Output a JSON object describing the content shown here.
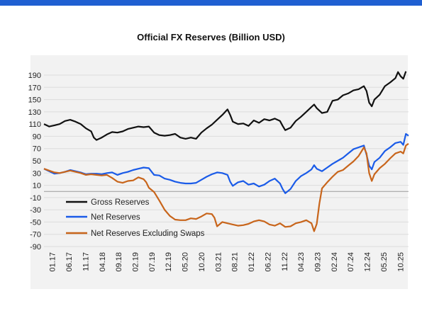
{
  "chart_data": {
    "type": "line",
    "title": "Official  FX Reserves (Billion USD)",
    "xlabel": "",
    "ylabel": "",
    "ylim": [
      -90,
      190
    ],
    "yticks": [
      190,
      170,
      150,
      130,
      110,
      90,
      70,
      50,
      30,
      10,
      -10,
      -30,
      -50,
      -70,
      -90
    ],
    "xticks": [
      "01.17",
      "06.17",
      "11.17",
      "04.18",
      "09.18",
      "02.19",
      "07.19",
      "12.19",
      "05.20",
      "10.20",
      "03.21",
      "08.21",
      "01.22",
      "06.22",
      "11.22",
      "04.23",
      "09.23",
      "02.24",
      "07.24",
      "12.24",
      "05.25",
      "10.25"
    ],
    "grid": true,
    "legend_position": "bottom-left",
    "series": [
      {
        "name": "Gross Reserves",
        "color": "#111111",
        "points": [
          [
            0,
            110
          ],
          [
            2,
            106
          ],
          [
            4,
            108
          ],
          [
            6,
            110
          ],
          [
            8,
            115
          ],
          [
            10,
            117
          ],
          [
            12,
            114
          ],
          [
            14,
            110
          ],
          [
            16,
            103
          ],
          [
            18,
            98
          ],
          [
            19,
            88
          ],
          [
            20,
            84
          ],
          [
            22,
            88
          ],
          [
            24,
            93
          ],
          [
            26,
            97
          ],
          [
            28,
            96
          ],
          [
            30,
            98
          ],
          [
            32,
            102
          ],
          [
            34,
            104
          ],
          [
            36,
            106
          ],
          [
            38,
            105
          ],
          [
            40,
            106
          ],
          [
            42,
            96
          ],
          [
            44,
            92
          ],
          [
            46,
            91
          ],
          [
            48,
            92
          ],
          [
            50,
            94
          ],
          [
            52,
            88
          ],
          [
            54,
            86
          ],
          [
            56,
            88
          ],
          [
            58,
            86
          ],
          [
            60,
            96
          ],
          [
            62,
            103
          ],
          [
            64,
            109
          ],
          [
            66,
            117
          ],
          [
            68,
            125
          ],
          [
            70,
            134
          ],
          [
            71,
            125
          ],
          [
            72,
            114
          ],
          [
            74,
            110
          ],
          [
            76,
            111
          ],
          [
            78,
            107
          ],
          [
            80,
            116
          ],
          [
            82,
            112
          ],
          [
            84,
            118
          ],
          [
            86,
            116
          ],
          [
            88,
            119
          ],
          [
            90,
            115
          ],
          [
            91,
            107
          ],
          [
            92,
            100
          ],
          [
            94,
            104
          ],
          [
            96,
            115
          ],
          [
            98,
            122
          ],
          [
            100,
            130
          ],
          [
            102,
            138
          ],
          [
            103,
            142
          ],
          [
            104,
            136
          ],
          [
            106,
            128
          ],
          [
            108,
            130
          ],
          [
            110,
            148
          ],
          [
            112,
            150
          ],
          [
            114,
            157
          ],
          [
            116,
            160
          ],
          [
            118,
            165
          ],
          [
            120,
            167
          ],
          [
            122,
            172
          ],
          [
            123,
            164
          ],
          [
            124,
            145
          ],
          [
            125,
            139
          ],
          [
            126,
            150
          ],
          [
            128,
            158
          ],
          [
            130,
            172
          ],
          [
            132,
            178
          ],
          [
            134,
            185
          ],
          [
            135,
            195
          ],
          [
            136,
            188
          ],
          [
            137,
            184
          ],
          [
            138,
            196
          ]
        ]
      },
      {
        "name": "Net Reserves",
        "color": "#1a5be8",
        "points": [
          [
            0,
            37
          ],
          [
            2,
            33
          ],
          [
            4,
            29
          ],
          [
            6,
            30
          ],
          [
            8,
            32
          ],
          [
            10,
            35
          ],
          [
            12,
            33
          ],
          [
            14,
            31
          ],
          [
            16,
            28
          ],
          [
            18,
            29
          ],
          [
            20,
            29
          ],
          [
            22,
            28
          ],
          [
            24,
            30
          ],
          [
            26,
            31
          ],
          [
            28,
            27
          ],
          [
            30,
            30
          ],
          [
            32,
            32
          ],
          [
            34,
            35
          ],
          [
            36,
            37
          ],
          [
            38,
            39
          ],
          [
            40,
            38
          ],
          [
            42,
            27
          ],
          [
            44,
            26
          ],
          [
            46,
            21
          ],
          [
            48,
            19
          ],
          [
            50,
            16
          ],
          [
            52,
            14
          ],
          [
            54,
            13
          ],
          [
            56,
            13
          ],
          [
            58,
            14
          ],
          [
            60,
            19
          ],
          [
            62,
            24
          ],
          [
            64,
            28
          ],
          [
            66,
            31
          ],
          [
            68,
            30
          ],
          [
            70,
            27
          ],
          [
            71,
            16
          ],
          [
            72,
            9
          ],
          [
            74,
            15
          ],
          [
            76,
            17
          ],
          [
            78,
            11
          ],
          [
            80,
            13
          ],
          [
            82,
            8
          ],
          [
            84,
            11
          ],
          [
            86,
            17
          ],
          [
            88,
            21
          ],
          [
            90,
            13
          ],
          [
            91,
            4
          ],
          [
            92,
            -3
          ],
          [
            94,
            4
          ],
          [
            96,
            17
          ],
          [
            98,
            25
          ],
          [
            100,
            30
          ],
          [
            102,
            36
          ],
          [
            103,
            43
          ],
          [
            104,
            37
          ],
          [
            106,
            33
          ],
          [
            108,
            39
          ],
          [
            110,
            45
          ],
          [
            112,
            50
          ],
          [
            114,
            55
          ],
          [
            116,
            62
          ],
          [
            118,
            69
          ],
          [
            120,
            72
          ],
          [
            122,
            75
          ],
          [
            123,
            60
          ],
          [
            124,
            42
          ],
          [
            125,
            36
          ],
          [
            126,
            48
          ],
          [
            128,
            55
          ],
          [
            130,
            66
          ],
          [
            132,
            72
          ],
          [
            134,
            79
          ],
          [
            136,
            81
          ],
          [
            137,
            76
          ],
          [
            138,
            94
          ],
          [
            139,
            91
          ]
        ]
      },
      {
        "name": "Net Reserves Excluding Swaps",
        "color": "#c8651b",
        "points": [
          [
            0,
            37
          ],
          [
            2,
            34
          ],
          [
            4,
            31
          ],
          [
            6,
            30
          ],
          [
            8,
            32
          ],
          [
            10,
            34
          ],
          [
            12,
            32
          ],
          [
            14,
            30
          ],
          [
            16,
            27
          ],
          [
            18,
            28
          ],
          [
            20,
            27
          ],
          [
            22,
            26
          ],
          [
            24,
            27
          ],
          [
            26,
            22
          ],
          [
            28,
            16
          ],
          [
            30,
            14
          ],
          [
            32,
            17
          ],
          [
            34,
            18
          ],
          [
            36,
            23
          ],
          [
            38,
            20
          ],
          [
            39,
            15
          ],
          [
            40,
            6
          ],
          [
            42,
            -1
          ],
          [
            44,
            -15
          ],
          [
            46,
            -30
          ],
          [
            48,
            -40
          ],
          [
            50,
            -46
          ],
          [
            52,
            -47
          ],
          [
            54,
            -47
          ],
          [
            56,
            -44
          ],
          [
            58,
            -45
          ],
          [
            60,
            -41
          ],
          [
            62,
            -36
          ],
          [
            64,
            -37
          ],
          [
            65,
            -43
          ],
          [
            66,
            -57
          ],
          [
            68,
            -50
          ],
          [
            70,
            -52
          ],
          [
            72,
            -54
          ],
          [
            74,
            -56
          ],
          [
            76,
            -55
          ],
          [
            78,
            -53
          ],
          [
            80,
            -49
          ],
          [
            82,
            -47
          ],
          [
            84,
            -49
          ],
          [
            86,
            -54
          ],
          [
            88,
            -56
          ],
          [
            90,
            -52
          ],
          [
            92,
            -58
          ],
          [
            94,
            -57
          ],
          [
            96,
            -52
          ],
          [
            98,
            -50
          ],
          [
            100,
            -47
          ],
          [
            102,
            -52
          ],
          [
            103,
            -65
          ],
          [
            104,
            -53
          ],
          [
            105,
            -20
          ],
          [
            106,
            5
          ],
          [
            108,
            15
          ],
          [
            110,
            24
          ],
          [
            112,
            32
          ],
          [
            114,
            35
          ],
          [
            116,
            42
          ],
          [
            118,
            49
          ],
          [
            120,
            58
          ],
          [
            122,
            72
          ],
          [
            123,
            62
          ],
          [
            124,
            30
          ],
          [
            125,
            17
          ],
          [
            126,
            28
          ],
          [
            128,
            38
          ],
          [
            130,
            45
          ],
          [
            132,
            54
          ],
          [
            134,
            62
          ],
          [
            136,
            65
          ],
          [
            137,
            62
          ],
          [
            138,
            75
          ],
          [
            139,
            78
          ]
        ]
      }
    ]
  }
}
